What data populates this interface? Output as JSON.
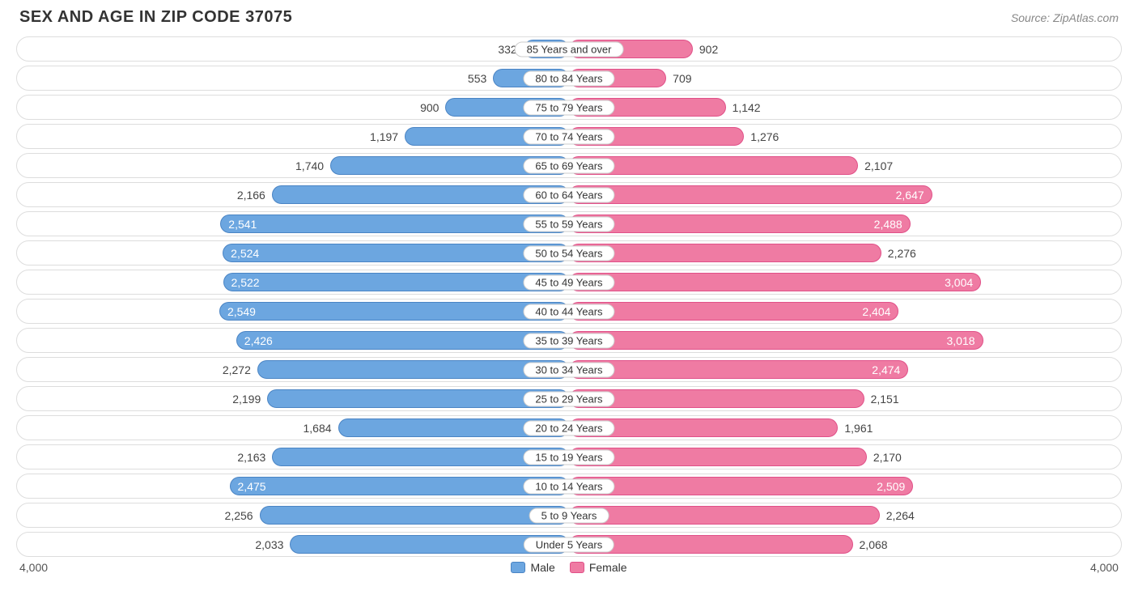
{
  "title": "SEX AND AGE IN ZIP CODE 37075",
  "source": "Source: ZipAtlas.com",
  "chart": {
    "type": "population-pyramid",
    "axis_max": 4000,
    "axis_label_left": "4,000",
    "axis_label_right": "4,000",
    "label_threshold": 2400,
    "colors": {
      "male_fill": "#6ca6e0",
      "male_border": "#4a84c4",
      "female_fill": "#ef7ba3",
      "female_border": "#e05088",
      "row_border": "#dddddd",
      "text": "#444444",
      "text_inside": "#ffffff",
      "background": "#ffffff"
    },
    "legend": {
      "male": "Male",
      "female": "Female"
    },
    "font": {
      "title_size": 20,
      "label_size": 14,
      "age_label_size": 13
    },
    "rows": [
      {
        "age": "85 Years and over",
        "male": 332,
        "male_label": "332",
        "female": 902,
        "female_label": "902"
      },
      {
        "age": "80 to 84 Years",
        "male": 553,
        "male_label": "553",
        "female": 709,
        "female_label": "709"
      },
      {
        "age": "75 to 79 Years",
        "male": 900,
        "male_label": "900",
        "female": 1142,
        "female_label": "1,142"
      },
      {
        "age": "70 to 74 Years",
        "male": 1197,
        "male_label": "1,197",
        "female": 1276,
        "female_label": "1,276"
      },
      {
        "age": "65 to 69 Years",
        "male": 1740,
        "male_label": "1,740",
        "female": 2107,
        "female_label": "2,107"
      },
      {
        "age": "60 to 64 Years",
        "male": 2166,
        "male_label": "2,166",
        "female": 2647,
        "female_label": "2,647"
      },
      {
        "age": "55 to 59 Years",
        "male": 2541,
        "male_label": "2,541",
        "female": 2488,
        "female_label": "2,488"
      },
      {
        "age": "50 to 54 Years",
        "male": 2524,
        "male_label": "2,524",
        "female": 2276,
        "female_label": "2,276"
      },
      {
        "age": "45 to 49 Years",
        "male": 2522,
        "male_label": "2,522",
        "female": 3004,
        "female_label": "3,004"
      },
      {
        "age": "40 to 44 Years",
        "male": 2549,
        "male_label": "2,549",
        "female": 2404,
        "female_label": "2,404"
      },
      {
        "age": "35 to 39 Years",
        "male": 2426,
        "male_label": "2,426",
        "female": 3018,
        "female_label": "3,018"
      },
      {
        "age": "30 to 34 Years",
        "male": 2272,
        "male_label": "2,272",
        "female": 2474,
        "female_label": "2,474"
      },
      {
        "age": "25 to 29 Years",
        "male": 2199,
        "male_label": "2,199",
        "female": 2151,
        "female_label": "2,151"
      },
      {
        "age": "20 to 24 Years",
        "male": 1684,
        "male_label": "1,684",
        "female": 1961,
        "female_label": "1,961"
      },
      {
        "age": "15 to 19 Years",
        "male": 2163,
        "male_label": "2,163",
        "female": 2170,
        "female_label": "2,170"
      },
      {
        "age": "10 to 14 Years",
        "male": 2475,
        "male_label": "2,475",
        "female": 2509,
        "female_label": "2,509"
      },
      {
        "age": "5 to 9 Years",
        "male": 2256,
        "male_label": "2,256",
        "female": 2264,
        "female_label": "2,264"
      },
      {
        "age": "Under 5 Years",
        "male": 2033,
        "male_label": "2,033",
        "female": 2068,
        "female_label": "2,068"
      }
    ]
  }
}
